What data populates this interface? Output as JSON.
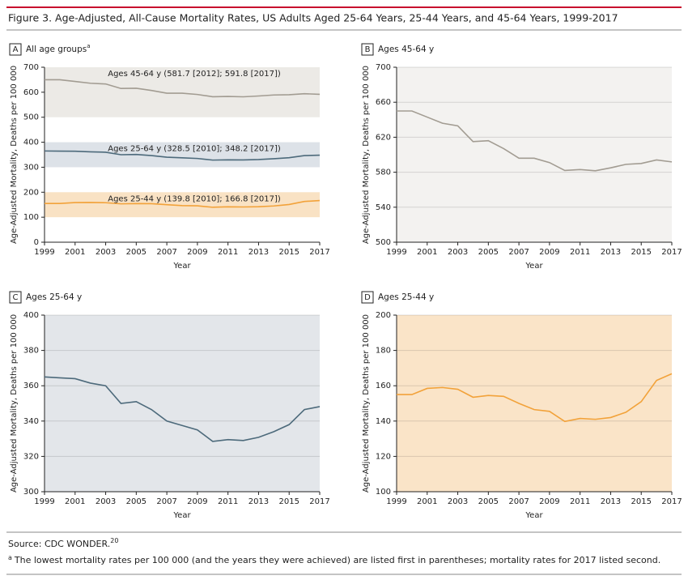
{
  "figure": {
    "title": "Figure 3. Age-Adjusted, All-Cause Mortality Rates, US Adults Aged 25-64 Years, 25-44 Years, and 45-64 Years, 1999-2017"
  },
  "chart_data": [
    {
      "type": "line",
      "panel": "A",
      "title": "All age groups",
      "title_note": "a",
      "x_label": "Year",
      "y_label": "Age-Adjusted Mortality, Deaths per 100 000",
      "x": [
        1999,
        2000,
        2001,
        2002,
        2003,
        2004,
        2005,
        2006,
        2007,
        2008,
        2009,
        2010,
        2011,
        2012,
        2013,
        2014,
        2015,
        2016,
        2017
      ],
      "xlim": [
        1999,
        2017
      ],
      "xticks": [
        1999,
        2001,
        2003,
        2005,
        2007,
        2009,
        2011,
        2013,
        2015,
        2017
      ],
      "ylim": [
        0,
        700
      ],
      "yticks": [
        0,
        100,
        200,
        300,
        400,
        500,
        600,
        700
      ],
      "grid": false,
      "bands": [
        {
          "range": [
            500,
            700
          ],
          "color": "#eceae6"
        },
        {
          "range": [
            300,
            400
          ],
          "color": "#dde2e8"
        },
        {
          "range": [
            100,
            200
          ],
          "color": "#f9e2c4"
        }
      ],
      "series": [
        {
          "name": "Ages 45-64 y (581.7 [2012]; 591.8 [2017])",
          "color": "#a29c92",
          "values": [
            650,
            650,
            643,
            636,
            633,
            615,
            616,
            607,
            596,
            596,
            591,
            582,
            583,
            581.7,
            585,
            589,
            590,
            594,
            591.8
          ]
        },
        {
          "name": "Ages 25-64 y (328.5 [2010]; 348.2 [2017])",
          "color": "#4d6a7b",
          "values": [
            365,
            364.5,
            364,
            361.5,
            360,
            350,
            351,
            346.5,
            340,
            337.5,
            335,
            328.5,
            329.5,
            329,
            330.8,
            334,
            338,
            346.5,
            348.2
          ]
        },
        {
          "name": "Ages 25-44 y (139.8 [2010]; 166.8 [2017])",
          "color": "#f2a23a",
          "values": [
            155,
            155,
            158.5,
            159,
            158,
            153.5,
            154.5,
            154,
            150,
            146.5,
            145.5,
            139.8,
            141.5,
            141,
            142,
            145,
            151,
            163,
            166.8
          ]
        }
      ]
    },
    {
      "type": "line",
      "panel": "B",
      "title": "Ages 45-64 y",
      "x_label": "Year",
      "y_label": "Age-Adjusted Mortality, Deaths per 100 000",
      "x": [
        1999,
        2000,
        2001,
        2002,
        2003,
        2004,
        2005,
        2006,
        2007,
        2008,
        2009,
        2010,
        2011,
        2012,
        2013,
        2014,
        2015,
        2016,
        2017
      ],
      "xlim": [
        1999,
        2017
      ],
      "xticks": [
        1999,
        2001,
        2003,
        2005,
        2007,
        2009,
        2011,
        2013,
        2015,
        2017
      ],
      "ylim": [
        500,
        700
      ],
      "yticks": [
        500,
        540,
        580,
        620,
        660,
        700
      ],
      "grid": true,
      "background": "#f3f2f0",
      "series": [
        {
          "color": "#a29c92",
          "values": [
            650,
            650,
            643,
            636,
            633,
            615,
            616,
            607,
            596,
            596,
            591,
            582,
            583,
            581.7,
            585,
            589,
            590,
            594,
            591.8
          ]
        }
      ]
    },
    {
      "type": "line",
      "panel": "C",
      "title": "Ages 25-64 y",
      "x_label": "Year",
      "y_label": "Age-Adjusted Mortality, Deaths per 100 000",
      "x": [
        1999,
        2000,
        2001,
        2002,
        2003,
        2004,
        2005,
        2006,
        2007,
        2008,
        2009,
        2010,
        2011,
        2012,
        2013,
        2014,
        2015,
        2016,
        2017
      ],
      "xlim": [
        1999,
        2017
      ],
      "xticks": [
        1999,
        2001,
        2003,
        2005,
        2007,
        2009,
        2011,
        2013,
        2015,
        2017
      ],
      "ylim": [
        300,
        400
      ],
      "yticks": [
        300,
        320,
        340,
        360,
        380,
        400
      ],
      "grid": true,
      "background": "#e3e6ea",
      "series": [
        {
          "color": "#4d6a7b",
          "values": [
            365,
            364.5,
            364,
            361.5,
            360,
            350,
            351,
            346.5,
            340,
            337.5,
            335,
            328.5,
            329.5,
            329,
            330.8,
            334,
            338,
            346.5,
            348.2
          ]
        }
      ]
    },
    {
      "type": "line",
      "panel": "D",
      "title": "Ages 25-44 y",
      "x_label": "Year",
      "y_label": "Age-Adjusted Mortality, Deaths per 100 000",
      "x": [
        1999,
        2000,
        2001,
        2002,
        2003,
        2004,
        2005,
        2006,
        2007,
        2008,
        2009,
        2010,
        2011,
        2012,
        2013,
        2014,
        2015,
        2016,
        2017
      ],
      "xlim": [
        1999,
        2017
      ],
      "xticks": [
        1999,
        2001,
        2003,
        2005,
        2007,
        2009,
        2011,
        2013,
        2015,
        2017
      ],
      "ylim": [
        100,
        200
      ],
      "yticks": [
        100,
        120,
        140,
        160,
        180,
        200
      ],
      "grid": true,
      "background": "#fae4c8",
      "series": [
        {
          "color": "#f2a23a",
          "values": [
            155,
            155,
            158.5,
            159,
            158,
            153.5,
            154.5,
            154,
            150,
            146.5,
            145.5,
            139.8,
            141.5,
            141,
            142,
            145,
            151,
            163,
            166.8
          ]
        }
      ]
    }
  ],
  "footer": {
    "source": "Source: CDC WONDER.",
    "source_ref": "20",
    "footnote_mark": "a",
    "footnote": "The lowest mortality rates per 100 000 (and the years they were achieved) are listed first in parentheses; mortality rates for 2017 listed second."
  }
}
